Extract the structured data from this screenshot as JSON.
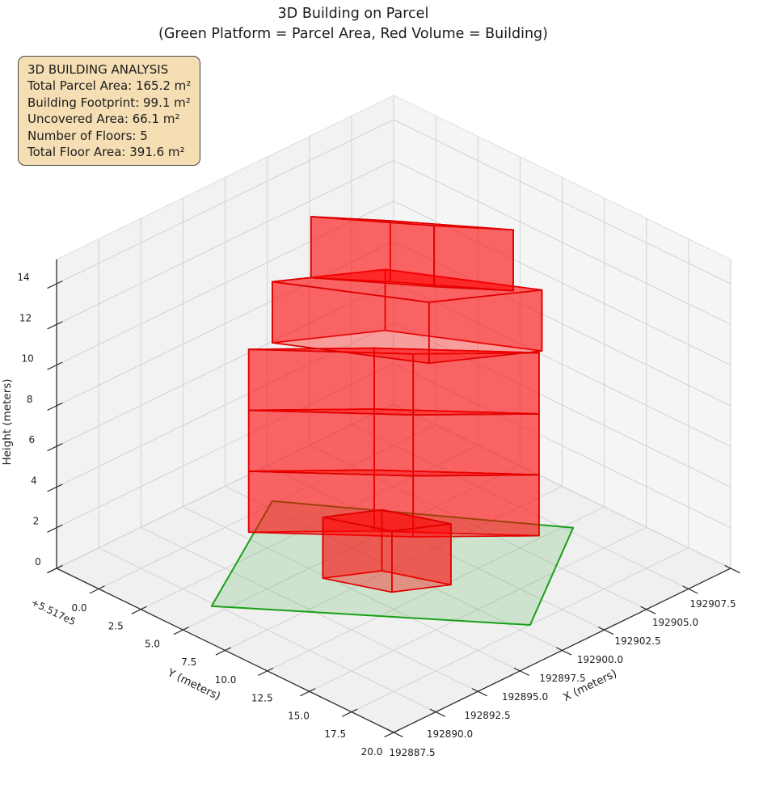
{
  "title": {
    "line1": "3D Building on Parcel",
    "line2": "(Green Platform = Parcel Area, Red Volume = Building)"
  },
  "info_box": {
    "heading": "3D BUILDING ANALYSIS",
    "lines": [
      "Total Parcel Area: 165.2 m²",
      "Building Footprint: 99.1 m²",
      "Uncovered Area: 66.1 m²",
      "Number of Floors: 5",
      "Total Floor Area: 391.6 m²"
    ],
    "bg_color": "#f5deb3",
    "border_color": "#454545"
  },
  "chart_data": {
    "type": "3d-building-plot",
    "x_axis": {
      "label": "X (meters)",
      "values": [
        192887.5,
        192890.0,
        192892.5,
        192895.0,
        192897.5,
        192900.0,
        192902.5,
        192905.0,
        192907.5
      ],
      "labels": [
        "192887.5",
        "192890.0",
        "192892.5",
        "192895.0",
        "192897.5",
        "192900.0",
        "192902.5",
        "192905.0",
        "192907.5"
      ]
    },
    "y_axis": {
      "label": "Y (meters)",
      "offset_text": "+5.517e5",
      "values": [
        0,
        2.5,
        5,
        7.5,
        10,
        12.5,
        15,
        17.5,
        20
      ],
      "labels": [
        "0.0",
        "2.5",
        "5.0",
        "7.5",
        "10.0",
        "12.5",
        "15.0",
        "17.5",
        "20.0"
      ]
    },
    "z_axis": {
      "label": "Height (meters)",
      "values": [
        0,
        2,
        4,
        6,
        8,
        10,
        12,
        14
      ],
      "labels": [
        "0",
        "2",
        "4",
        "6",
        "8",
        "10",
        "12",
        "14"
      ]
    },
    "ranges": {
      "x": [
        192887.5,
        192907.5
      ],
      "y": [
        0,
        20
      ],
      "z_pane_top": 15.2
    },
    "parcel": {
      "name": "parcel-platform",
      "corners": [
        [
          192905.2,
          6.9
        ],
        [
          192897.0,
          2.3
        ],
        [
          192889.7,
          12.85
        ],
        [
          192896.9,
          17.5
        ]
      ],
      "fill": "rgba(34,160,34,0.16)",
      "edge": "#18a018"
    },
    "building": {
      "face_fill": "rgba(255,0,0,0.36)",
      "edge": "#e00000",
      "floors": [
        {
          "name": "floor-1",
          "z": [
            0,
            3
          ],
          "footprint": [
            [
              192899.6,
              3.5
            ],
            [
              192895.8,
              7.15
            ],
            [
              192891.2,
              12.33
            ],
            [
              192895.0,
              8.66
            ]
          ]
        },
        {
          "name": "floor-2",
          "z": [
            3,
            6
          ],
          "footprint": [
            [
              192899.6,
              3.5
            ],
            [
              192895.8,
              7.15
            ],
            [
              192891.2,
              12.33
            ],
            [
              192895.0,
              8.66
            ]
          ]
        },
        {
          "name": "floor-3",
          "z": [
            6,
            9
          ],
          "footprint": [
            [
              192899.6,
              3.5
            ],
            [
              192895.8,
              7.15
            ],
            [
              192891.2,
              12.33
            ],
            [
              192895.0,
              8.66
            ]
          ]
        },
        {
          "name": "floor-4",
          "z": [
            9,
            12
          ],
          "footprint": [
            [
              192898.5,
              3.8
            ],
            [
              192894.4,
              6.4
            ],
            [
              192891.0,
              12.3
            ],
            [
              192895.1,
              9.7
            ]
          ]
        },
        {
          "name": "floor-5",
          "z": [
            12,
            15
          ],
          "footprint": [
            [
              192897.1,
              4.7
            ],
            [
              192895.0,
              7.3
            ],
            [
              192891.9,
              11.5
            ],
            [
              192894.0,
              8.9
            ]
          ]
        },
        {
          "name": "ground-annex",
          "z": [
            0,
            3
          ],
          "footprint": [
            [
              192900.2,
              8.5
            ],
            [
              192898.0,
              9.8
            ],
            [
              192896.8,
              12.7
            ],
            [
              192899.0,
              11.4
            ]
          ]
        }
      ]
    },
    "stats": {
      "total_parcel_area_m2": 165.2,
      "building_footprint_m2": 99.1,
      "uncovered_area_m2": 66.1,
      "number_of_floors": 5,
      "total_floor_area_m2": 391.6
    }
  }
}
